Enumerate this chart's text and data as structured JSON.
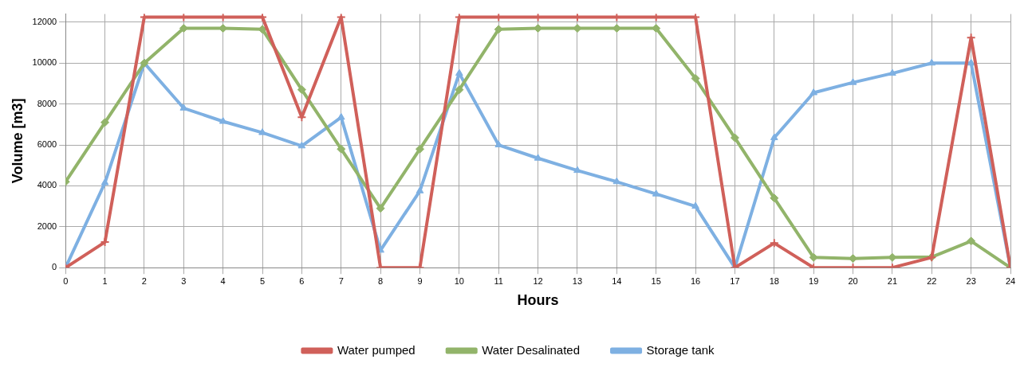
{
  "chart_data": {
    "type": "line",
    "xlabel": "Hours",
    "ylabel": "Volume [m3]",
    "x": [
      0,
      1,
      2,
      3,
      4,
      5,
      6,
      7,
      8,
      9,
      10,
      11,
      12,
      13,
      14,
      15,
      16,
      17,
      18,
      19,
      20,
      21,
      22,
      23,
      24
    ],
    "xlim": [
      0,
      24
    ],
    "xticks": [
      0,
      1,
      2,
      3,
      4,
      5,
      6,
      7,
      8,
      9,
      10,
      11,
      12,
      13,
      14,
      15,
      16,
      17,
      18,
      19,
      20,
      21,
      22,
      23,
      24
    ],
    "ylim": [
      0,
      12400
    ],
    "yticks": [
      0,
      2000,
      4000,
      6000,
      8000,
      10000,
      12000
    ],
    "grid": true,
    "legend": "bottom",
    "series": [
      {
        "name": "Water pumped",
        "color": "#d0605a",
        "marker": "cross",
        "values": [
          0,
          1250,
          12250,
          12250,
          12250,
          12250,
          7350,
          12250,
          0,
          0,
          12250,
          12250,
          12250,
          12250,
          12250,
          12250,
          12250,
          0,
          1200,
          0,
          0,
          0,
          500,
          11250,
          0
        ]
      },
      {
        "name": "Water Desalinated",
        "color": "#92b46a",
        "marker": "diamond",
        "values": [
          4200,
          7100,
          10000,
          11700,
          11700,
          11650,
          8700,
          5800,
          2900,
          5800,
          8700,
          11650,
          11700,
          11700,
          11700,
          11700,
          9250,
          6350,
          3400,
          500,
          450,
          500,
          520,
          1300,
          0
        ]
      },
      {
        "name": "Storage tank",
        "color": "#7eb0e2",
        "marker": "triangle",
        "values": [
          0,
          4150,
          10000,
          7800,
          7150,
          6600,
          5950,
          7350,
          850,
          3750,
          9500,
          6000,
          5350,
          4750,
          4200,
          3600,
          3000,
          0,
          6350,
          8550,
          9050,
          9500,
          10000,
          10000,
          0
        ]
      }
    ]
  }
}
